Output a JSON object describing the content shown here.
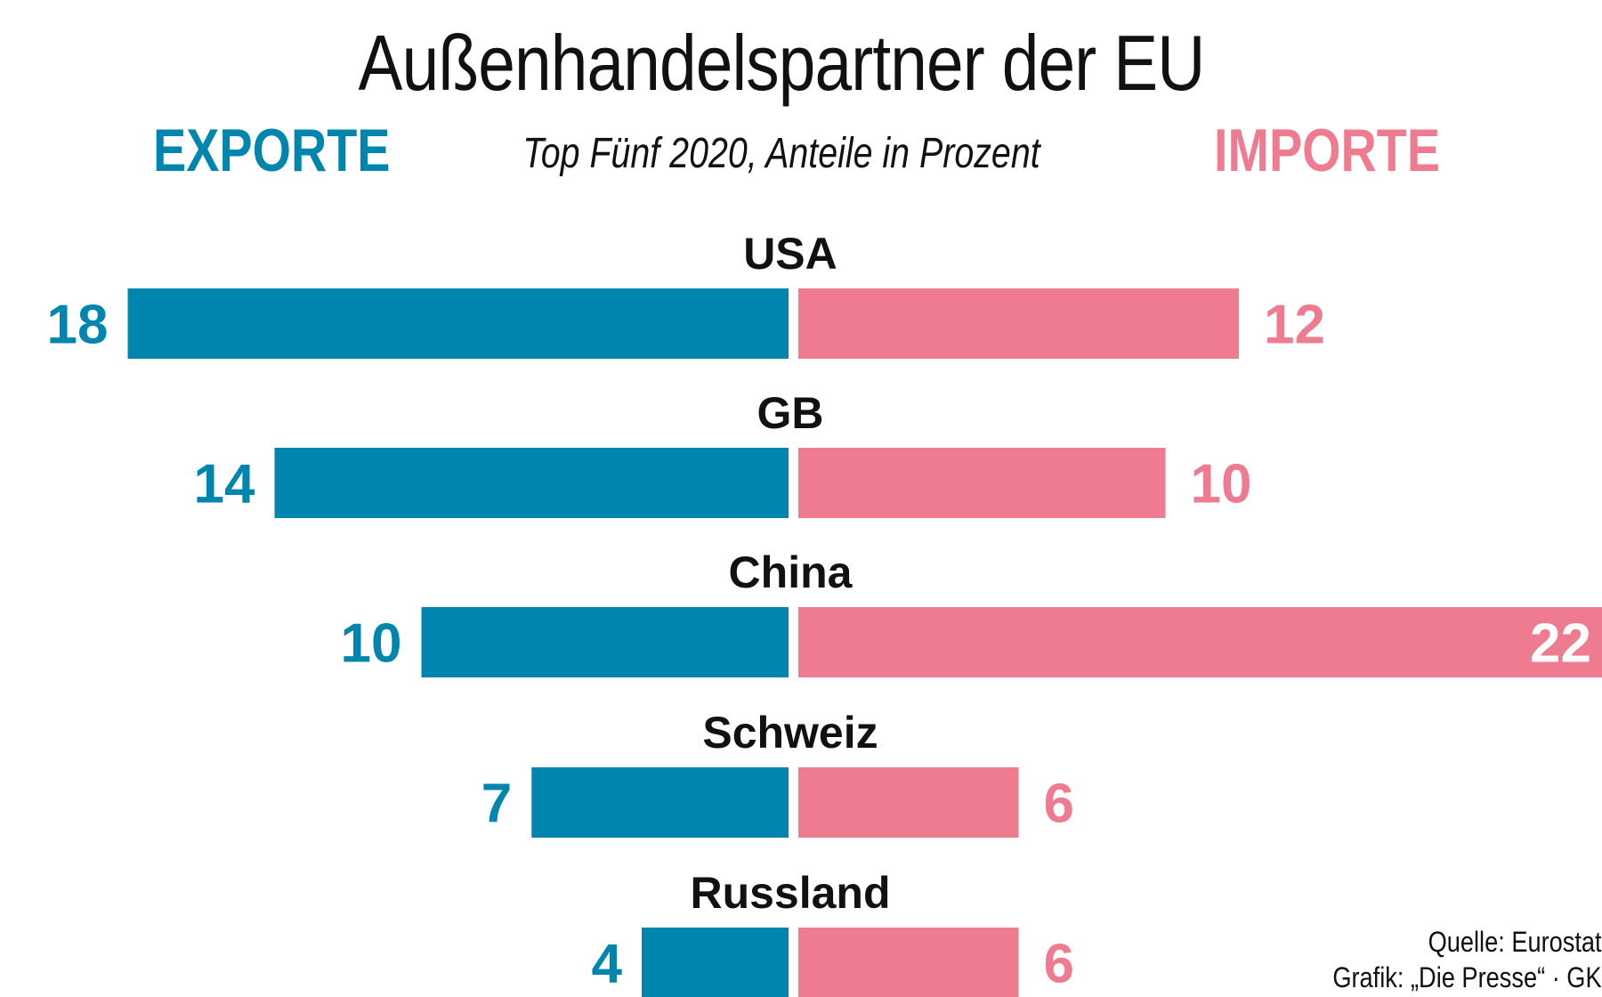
{
  "chart_data": {
    "type": "bar",
    "orientation": "horizontal-diverging",
    "title": "Außenhandelspartner der EU",
    "subtitle": "Top Fünf 2020, Anteile in Prozent",
    "categories": [
      "USA",
      "GB",
      "China",
      "Schweiz",
      "Russland"
    ],
    "series": [
      {
        "name": "EXPORTE",
        "values": [
          18,
          14,
          10,
          7,
          4
        ],
        "color": "#0086AE"
      },
      {
        "name": "IMPORTE",
        "values": [
          12,
          10,
          22,
          6,
          6
        ],
        "color": "#EE7B90"
      }
    ],
    "source": "Quelle: Eurostat",
    "credit": "Grafik: „Die Presse“ · GK"
  }
}
